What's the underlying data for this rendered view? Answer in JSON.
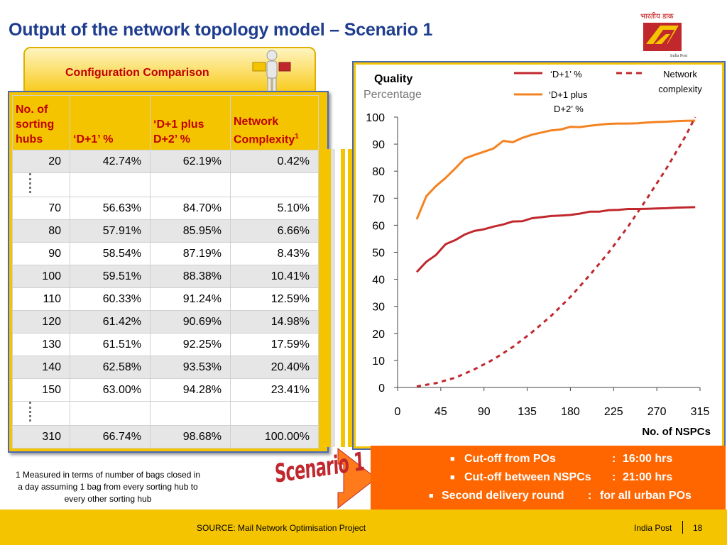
{
  "title": "Output of the network topology model – Scenario 1",
  "section_tab": "Configuration Comparison",
  "table": {
    "headers": [
      "No. of sorting hubs",
      "‘D+1’ %",
      "‘D+1 plus D+2’ %",
      "Network Complexity"
    ],
    "header_superscript": "1",
    "rows": [
      [
        "20",
        "42.74%",
        "62.19%",
        "0.42%"
      ],
      [
        "70",
        "56.63%",
        "84.70%",
        "5.10%"
      ],
      [
        "80",
        "57.91%",
        "85.95%",
        "6.66%"
      ],
      [
        "90",
        "58.54%",
        "87.19%",
        "8.43%"
      ],
      [
        "100",
        "59.51%",
        "88.38%",
        "10.41%"
      ],
      [
        "110",
        "60.33%",
        "91.24%",
        "12.59%"
      ],
      [
        "120",
        "61.42%",
        "90.69%",
        "14.98%"
      ],
      [
        "130",
        "61.51%",
        "92.25%",
        "17.59%"
      ],
      [
        "140",
        "62.58%",
        "93.53%",
        "20.40%"
      ],
      [
        "150",
        "63.00%",
        "94.28%",
        "23.41%"
      ],
      [
        "310",
        "66.74%",
        "98.68%",
        "100.00%"
      ]
    ]
  },
  "footnote": "1 Measured in terms of number of bags closed in a day assuming 1 bag from every sorting hub to every other sorting hub",
  "scenario_label": "Scenario 1",
  "info": [
    {
      "label": "Cut-off from POs",
      "sep": ":",
      "value": "16:00 hrs"
    },
    {
      "label": "Cut-off between NSPCs",
      "sep": ":",
      "value": "21:00 hrs"
    },
    {
      "label": "Second delivery round",
      "sep": ":",
      "value": "for all urban POs"
    }
  ],
  "footer": {
    "source": "SOURCE: Mail Network Optimisation Project",
    "org": "India Post",
    "page": "18"
  },
  "logo_text": "India Post",
  "colors": {
    "title": "#1f3d8f",
    "accent_red": "#c00000",
    "series_d1": "#c0282e",
    "series_d1d2": "#f58220",
    "series_complexity": "#c0282e",
    "yellow": "#f5c400",
    "orange_box": "#ff6600"
  },
  "chart_data": {
    "type": "line",
    "ylabel_bold": "Quality",
    "ylabel_sub": "Percentage",
    "xlabel": "No. of NSPCs",
    "xlim": [
      0,
      315
    ],
    "ylim": [
      0,
      100
    ],
    "xticks": [
      0,
      45,
      90,
      135,
      180,
      225,
      270,
      315
    ],
    "yticks": [
      0,
      10,
      20,
      30,
      40,
      50,
      60,
      70,
      80,
      90,
      100
    ],
    "legend_position": "top-right",
    "series": [
      {
        "name": "‘D+1’ %",
        "style": "solid",
        "color": "#c0282e",
        "x": [
          20,
          30,
          40,
          50,
          60,
          70,
          80,
          90,
          100,
          110,
          120,
          130,
          140,
          150,
          160,
          170,
          180,
          190,
          200,
          210,
          220,
          230,
          240,
          250,
          260,
          270,
          280,
          290,
          300,
          310
        ],
        "y": [
          42.7,
          46.5,
          49.0,
          53.0,
          54.5,
          56.6,
          57.9,
          58.5,
          59.5,
          60.3,
          61.4,
          61.5,
          62.6,
          63.0,
          63.4,
          63.6,
          63.8,
          64.3,
          65.0,
          65.0,
          65.6,
          65.7,
          66.0,
          66.0,
          66.1,
          66.2,
          66.3,
          66.5,
          66.6,
          66.7
        ]
      },
      {
        "name": "‘D+1 plus D+2’ %",
        "style": "solid",
        "color": "#f58220",
        "x": [
          20,
          30,
          40,
          50,
          60,
          70,
          80,
          90,
          100,
          110,
          120,
          130,
          140,
          150,
          160,
          170,
          180,
          190,
          200,
          210,
          220,
          230,
          240,
          250,
          260,
          270,
          280,
          290,
          300,
          310
        ],
        "y": [
          62.2,
          70.8,
          74.5,
          77.5,
          81.0,
          84.7,
          86.0,
          87.2,
          88.4,
          91.2,
          90.7,
          92.3,
          93.5,
          94.3,
          95.1,
          95.4,
          96.4,
          96.3,
          96.8,
          97.2,
          97.5,
          97.6,
          97.6,
          97.7,
          98.0,
          98.2,
          98.3,
          98.5,
          98.6,
          98.7
        ]
      },
      {
        "name": "Network complexity",
        "style": "dashed",
        "color": "#c0282e",
        "x": [
          20,
          40,
          60,
          80,
          100,
          120,
          140,
          160,
          180,
          200,
          220,
          240,
          260,
          280,
          300,
          310
        ],
        "y": [
          0.4,
          1.6,
          3.6,
          6.7,
          10.4,
          15.0,
          20.4,
          26.5,
          33.5,
          41.5,
          50.0,
          59.5,
          70.0,
          81.0,
          93.0,
          100.0
        ]
      }
    ]
  }
}
